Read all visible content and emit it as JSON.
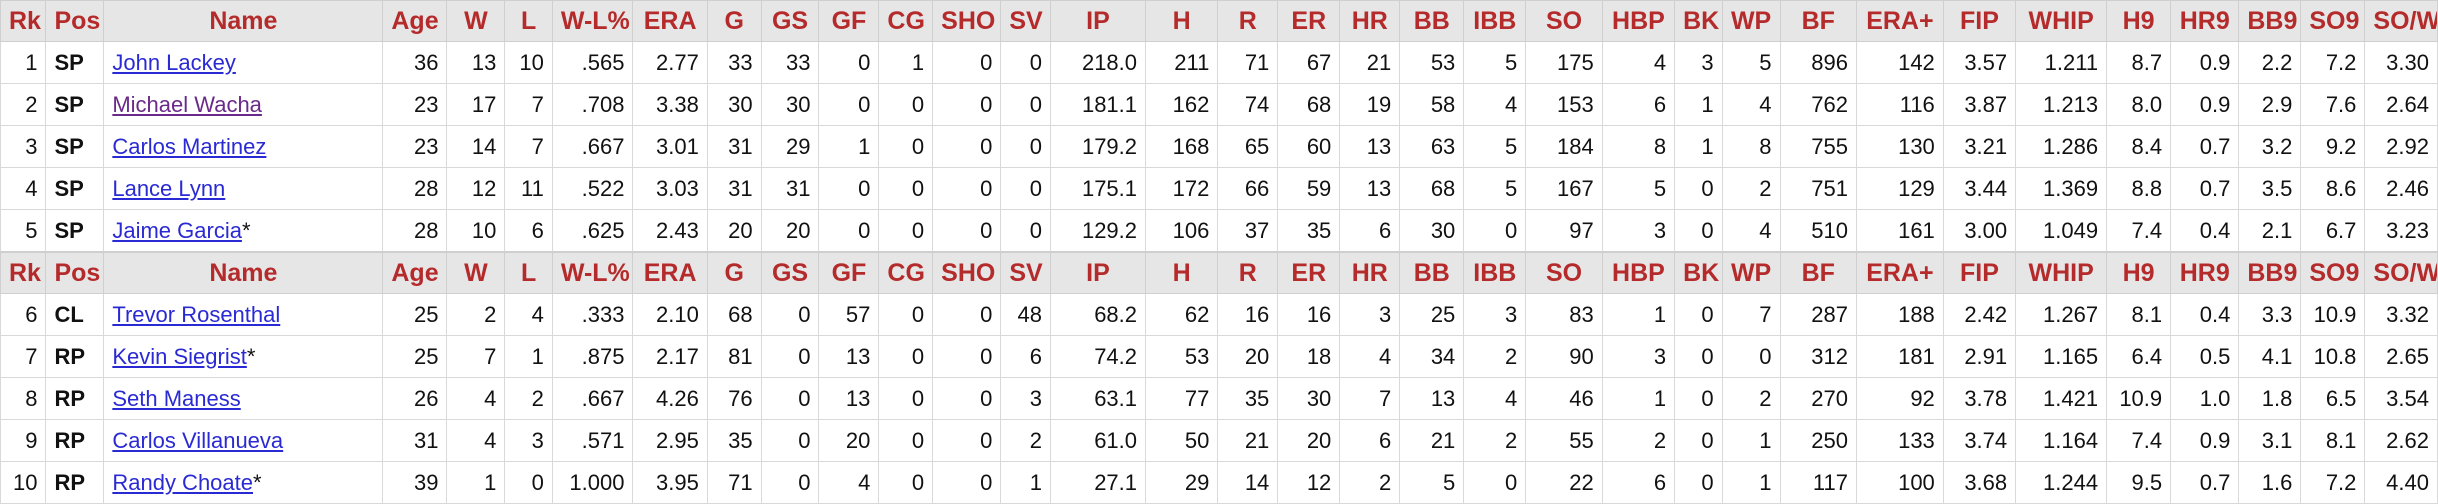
{
  "table": {
    "headers": [
      "Rk",
      "Pos",
      "Name",
      "Age",
      "W",
      "L",
      "W-L%",
      "ERA",
      "G",
      "GS",
      "GF",
      "CG",
      "SHO",
      "SV",
      "IP",
      "H",
      "R",
      "ER",
      "HR",
      "BB",
      "IBB",
      "SO",
      "HBP",
      "BK",
      "WP",
      "BF",
      "ERA+",
      "FIP",
      "WHIP",
      "H9",
      "HR9",
      "BB9",
      "SO9",
      "SO/W"
    ],
    "groups": [
      {
        "rows": [
          {
            "rk": "1",
            "pos": "SP",
            "name": "John Lackey",
            "suffix": "",
            "visited": false,
            "stats": [
              "36",
              "13",
              "10",
              ".565",
              "2.77",
              "33",
              "33",
              "0",
              "1",
              "0",
              "0",
              "218.0",
              "211",
              "71",
              "67",
              "21",
              "53",
              "5",
              "175",
              "4",
              "3",
              "5",
              "896",
              "142",
              "3.57",
              "1.211",
              "8.7",
              "0.9",
              "2.2",
              "7.2",
              "3.30"
            ]
          },
          {
            "rk": "2",
            "pos": "SP",
            "name": "Michael Wacha",
            "suffix": "",
            "visited": true,
            "stats": [
              "23",
              "17",
              "7",
              ".708",
              "3.38",
              "30",
              "30",
              "0",
              "0",
              "0",
              "0",
              "181.1",
              "162",
              "74",
              "68",
              "19",
              "58",
              "4",
              "153",
              "6",
              "1",
              "4",
              "762",
              "116",
              "3.87",
              "1.213",
              "8.0",
              "0.9",
              "2.9",
              "7.6",
              "2.64"
            ]
          },
          {
            "rk": "3",
            "pos": "SP",
            "name": "Carlos Martinez",
            "suffix": "",
            "visited": false,
            "stats": [
              "23",
              "14",
              "7",
              ".667",
              "3.01",
              "31",
              "29",
              "1",
              "0",
              "0",
              "0",
              "179.2",
              "168",
              "65",
              "60",
              "13",
              "63",
              "5",
              "184",
              "8",
              "1",
              "8",
              "755",
              "130",
              "3.21",
              "1.286",
              "8.4",
              "0.7",
              "3.2",
              "9.2",
              "2.92"
            ]
          },
          {
            "rk": "4",
            "pos": "SP",
            "name": "Lance Lynn",
            "suffix": "",
            "visited": false,
            "stats": [
              "28",
              "12",
              "11",
              ".522",
              "3.03",
              "31",
              "31",
              "0",
              "0",
              "0",
              "0",
              "175.1",
              "172",
              "66",
              "59",
              "13",
              "68",
              "5",
              "167",
              "5",
              "0",
              "2",
              "751",
              "129",
              "3.44",
              "1.369",
              "8.8",
              "0.7",
              "3.5",
              "8.6",
              "2.46"
            ]
          },
          {
            "rk": "5",
            "pos": "SP",
            "name": "Jaime Garcia",
            "suffix": "*",
            "visited": false,
            "stats": [
              "28",
              "10",
              "6",
              ".625",
              "2.43",
              "20",
              "20",
              "0",
              "0",
              "0",
              "0",
              "129.2",
              "106",
              "37",
              "35",
              "6",
              "30",
              "0",
              "97",
              "3",
              "0",
              "4",
              "510",
              "161",
              "3.00",
              "1.049",
              "7.4",
              "0.4",
              "2.1",
              "6.7",
              "3.23"
            ]
          }
        ]
      },
      {
        "rows": [
          {
            "rk": "6",
            "pos": "CL",
            "name": "Trevor Rosenthal",
            "suffix": "",
            "visited": false,
            "stats": [
              "25",
              "2",
              "4",
              ".333",
              "2.10",
              "68",
              "0",
              "57",
              "0",
              "0",
              "48",
              "68.2",
              "62",
              "16",
              "16",
              "3",
              "25",
              "3",
              "83",
              "1",
              "0",
              "7",
              "287",
              "188",
              "2.42",
              "1.267",
              "8.1",
              "0.4",
              "3.3",
              "10.9",
              "3.32"
            ]
          },
          {
            "rk": "7",
            "pos": "RP",
            "name": "Kevin Siegrist",
            "suffix": "*",
            "visited": false,
            "stats": [
              "25",
              "7",
              "1",
              ".875",
              "2.17",
              "81",
              "0",
              "13",
              "0",
              "0",
              "6",
              "74.2",
              "53",
              "20",
              "18",
              "4",
              "34",
              "2",
              "90",
              "3",
              "0",
              "0",
              "312",
              "181",
              "2.91",
              "1.165",
              "6.4",
              "0.5",
              "4.1",
              "10.8",
              "2.65"
            ]
          },
          {
            "rk": "8",
            "pos": "RP",
            "name": "Seth Maness",
            "suffix": "",
            "visited": false,
            "stats": [
              "26",
              "4",
              "2",
              ".667",
              "4.26",
              "76",
              "0",
              "13",
              "0",
              "0",
              "3",
              "63.1",
              "77",
              "35",
              "30",
              "7",
              "13",
              "4",
              "46",
              "1",
              "0",
              "2",
              "270",
              "92",
              "3.78",
              "1.421",
              "10.9",
              "1.0",
              "1.8",
              "6.5",
              "3.54"
            ]
          },
          {
            "rk": "9",
            "pos": "RP",
            "name": "Carlos Villanueva",
            "suffix": "",
            "visited": false,
            "stats": [
              "31",
              "4",
              "3",
              ".571",
              "2.95",
              "35",
              "0",
              "20",
              "0",
              "0",
              "2",
              "61.0",
              "50",
              "21",
              "20",
              "6",
              "21",
              "2",
              "55",
              "2",
              "0",
              "1",
              "250",
              "133",
              "3.74",
              "1.164",
              "7.4",
              "0.9",
              "3.1",
              "8.1",
              "2.62"
            ]
          },
          {
            "rk": "10",
            "pos": "RP",
            "name": "Randy Choate",
            "suffix": "*",
            "visited": false,
            "stats": [
              "39",
              "1",
              "0",
              "1.000",
              "3.95",
              "71",
              "0",
              "4",
              "0",
              "0",
              "1",
              "27.1",
              "29",
              "14",
              "12",
              "2",
              "5",
              "0",
              "22",
              "6",
              "0",
              "1",
              "117",
              "100",
              "3.68",
              "1.244",
              "9.5",
              "0.7",
              "1.6",
              "7.2",
              "4.40"
            ]
          }
        ]
      }
    ]
  }
}
